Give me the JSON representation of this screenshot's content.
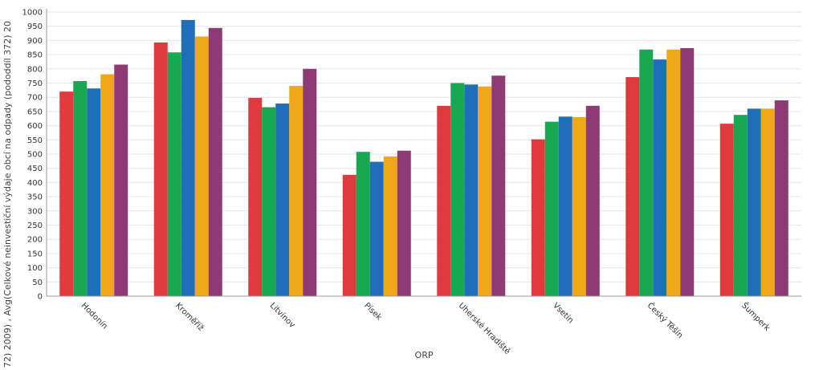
{
  "chart_data": {
    "type": "bar",
    "xlabel": "ORP",
    "ylabel": "72) 2009) , Avg(Celkové neinvestiční výdaje obcí na odpady (pododdíl 372) 20",
    "categories": [
      "Hodonín",
      "Kroměříž",
      "Litvínov",
      "Písek",
      "Uherské Hradiště",
      "Vsetín",
      "Český Těšín",
      "Šumperk"
    ],
    "ylim": [
      0,
      1000
    ],
    "yticks": [
      0,
      50,
      100,
      150,
      200,
      250,
      300,
      350,
      400,
      450,
      500,
      550,
      600,
      650,
      700,
      750,
      800,
      850,
      900,
      950,
      1000
    ],
    "grid": true,
    "legend": "none",
    "series": [
      {
        "color": "#e03a3e",
        "values": [
          720,
          893,
          698,
          427,
          670,
          552,
          771,
          607
        ]
      },
      {
        "color": "#1aa752",
        "values": [
          757,
          858,
          665,
          508,
          750,
          614,
          868,
          638
        ]
      },
      {
        "color": "#1f6fb8",
        "values": [
          731,
          972,
          678,
          473,
          745,
          632,
          833,
          660
        ]
      },
      {
        "color": "#f0a818",
        "values": [
          781,
          914,
          740,
          492,
          738,
          630,
          868,
          660
        ]
      },
      {
        "color": "#8e3a75",
        "values": [
          815,
          944,
          800,
          512,
          776,
          670,
          873,
          689
        ]
      }
    ]
  }
}
